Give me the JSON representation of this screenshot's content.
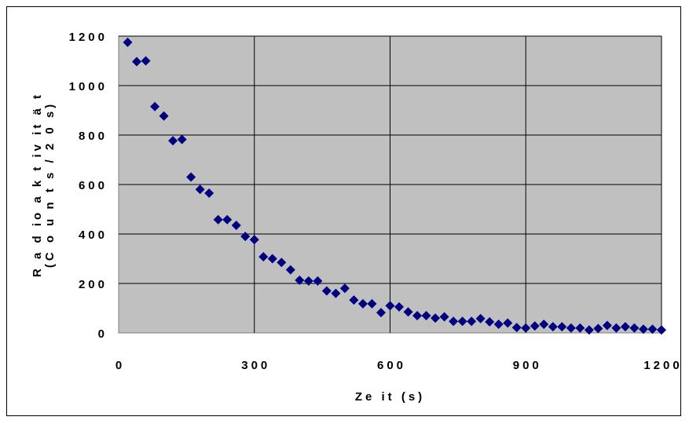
{
  "chart_data": {
    "type": "scatter",
    "title": "",
    "xlabel": "Ze it (s)",
    "ylabel_line1": "R a d io a k t iv it ä t",
    "ylabel_line2": "(C o u n t s / 2 0 s)",
    "xlim": [
      0,
      1200
    ],
    "ylim": [
      0,
      1200
    ],
    "xticks": [
      0,
      300,
      600,
      900,
      1200
    ],
    "yticks": [
      0,
      200,
      400,
      600,
      800,
      1000,
      1200
    ],
    "grid": true,
    "legend": "none",
    "plot_background": "#c0c0c0",
    "marker_color": "#000080",
    "marker": "diamond",
    "series": [
      {
        "x": [
          20,
          40,
          60,
          80,
          100,
          120,
          140,
          160,
          180,
          200,
          220,
          240,
          260,
          280,
          300,
          320,
          340,
          360,
          380,
          400,
          420,
          440,
          460,
          480,
          500,
          520,
          540,
          560,
          580,
          600,
          620,
          640,
          660,
          680,
          700,
          720,
          740,
          760,
          780,
          800,
          820,
          840,
          860,
          880,
          900,
          920,
          940,
          960,
          980,
          1000,
          1020,
          1040,
          1060,
          1080,
          1100,
          1120,
          1140,
          1160,
          1180,
          1200
        ],
        "y": [
          1175,
          1097,
          1100,
          915,
          877,
          777,
          782,
          630,
          580,
          565,
          458,
          458,
          435,
          390,
          377,
          308,
          300,
          285,
          255,
          213,
          210,
          210,
          170,
          160,
          180,
          133,
          118,
          118,
          82,
          110,
          105,
          85,
          70,
          70,
          60,
          65,
          47,
          47,
          47,
          58,
          45,
          35,
          40,
          22,
          20,
          28,
          35,
          25,
          25,
          20,
          20,
          12,
          18,
          30,
          20,
          25,
          20,
          15,
          15,
          12
        ]
      }
    ]
  }
}
